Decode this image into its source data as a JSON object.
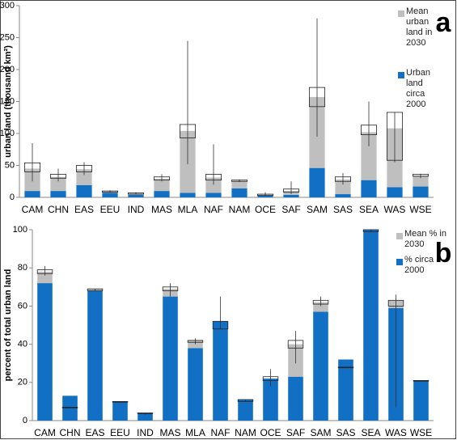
{
  "chart_data": [
    {
      "type": "bar",
      "stacked": true,
      "panel_label": "a",
      "y_label": "urban land (thousand km²)",
      "categories": [
        "CAM",
        "CHN",
        "EAS",
        "EEU",
        "IND",
        "MAS",
        "MLA",
        "NAF",
        "NAM",
        "OCE",
        "SAF",
        "SAM",
        "SAS",
        "SEA",
        "WAS",
        "WSE"
      ],
      "series": [
        {
          "name": "Urban land circa 2000",
          "color": "#1170c4",
          "values": [
            10,
            10,
            19,
            7,
            4,
            10,
            7,
            7,
            14,
            3,
            4,
            46,
            5,
            27,
            16,
            17
          ]
        },
        {
          "name": "Mean urban land in 2030",
          "color": "#bfbfbf",
          "values": [
            35,
            22,
            25,
            2,
            2,
            19,
            97,
            24,
            12,
            1,
            6,
            111,
            23,
            75,
            92,
            17
          ]
        }
      ],
      "box_low": [
        40,
        30,
        40,
        8,
        5,
        27,
        93,
        27,
        25,
        3,
        8,
        142,
        25,
        98,
        58,
        33
      ],
      "box_high": [
        54,
        36,
        50,
        10,
        7,
        32,
        114,
        36,
        27,
        5,
        13,
        172,
        32,
        113,
        133,
        36
      ],
      "whisker_low": [
        25,
        25,
        35,
        8,
        5,
        25,
        52,
        20,
        24,
        2,
        5,
        95,
        20,
        80,
        55,
        30
      ],
      "whisker_high": [
        85,
        45,
        55,
        11,
        8,
        36,
        245,
        83,
        28,
        8,
        25,
        280,
        38,
        150,
        133,
        37
      ],
      "ylim": [
        0,
        300
      ],
      "yticks": [
        0,
        50,
        100,
        150,
        200,
        250,
        300
      ]
    },
    {
      "type": "bar",
      "stacked": true,
      "panel_label": "b",
      "y_label": "percent of total urban land",
      "categories": [
        "CAM",
        "CHN",
        "EAS",
        "EEU",
        "IND",
        "MAS",
        "MLA",
        "NAF",
        "NAM",
        "OCE",
        "SAF",
        "SAM",
        "SAS",
        "SEA",
        "WAS",
        "WSE"
      ],
      "series": [
        {
          "name": "% circa 2000",
          "color": "#1170c4",
          "values": [
            72,
            13,
            68,
            10,
            4,
            65,
            38,
            52,
            11,
            22,
            23,
            57,
            32,
            100,
            59,
            21
          ]
        },
        {
          "name": "Mean % in 2030",
          "color": "#bfbfbf",
          "values": [
            6,
            0,
            1,
            0,
            0,
            4,
            4,
            0,
            0,
            0,
            17,
            5,
            0,
            0,
            4,
            0
          ]
        }
      ],
      "box_low": [
        77,
        7,
        68,
        10,
        4,
        68,
        41,
        48,
        10,
        21,
        38,
        61,
        28,
        99,
        60,
        21
      ],
      "box_high": [
        79,
        7,
        69,
        10,
        4,
        70,
        42,
        52,
        11,
        23,
        42,
        63,
        28,
        100,
        63,
        21
      ],
      "whisker_low": [
        76,
        7,
        68,
        10,
        3,
        65,
        40,
        48,
        10,
        18,
        30,
        60,
        28,
        99,
        7,
        21
      ],
      "whisker_high": [
        81,
        7,
        69,
        10,
        4,
        72,
        43,
        65,
        11,
        27,
        47,
        65,
        28,
        100,
        66,
        21
      ],
      "ylim": [
        0,
        100
      ],
      "yticks": [
        0,
        20,
        40,
        60,
        80,
        100
      ]
    }
  ]
}
